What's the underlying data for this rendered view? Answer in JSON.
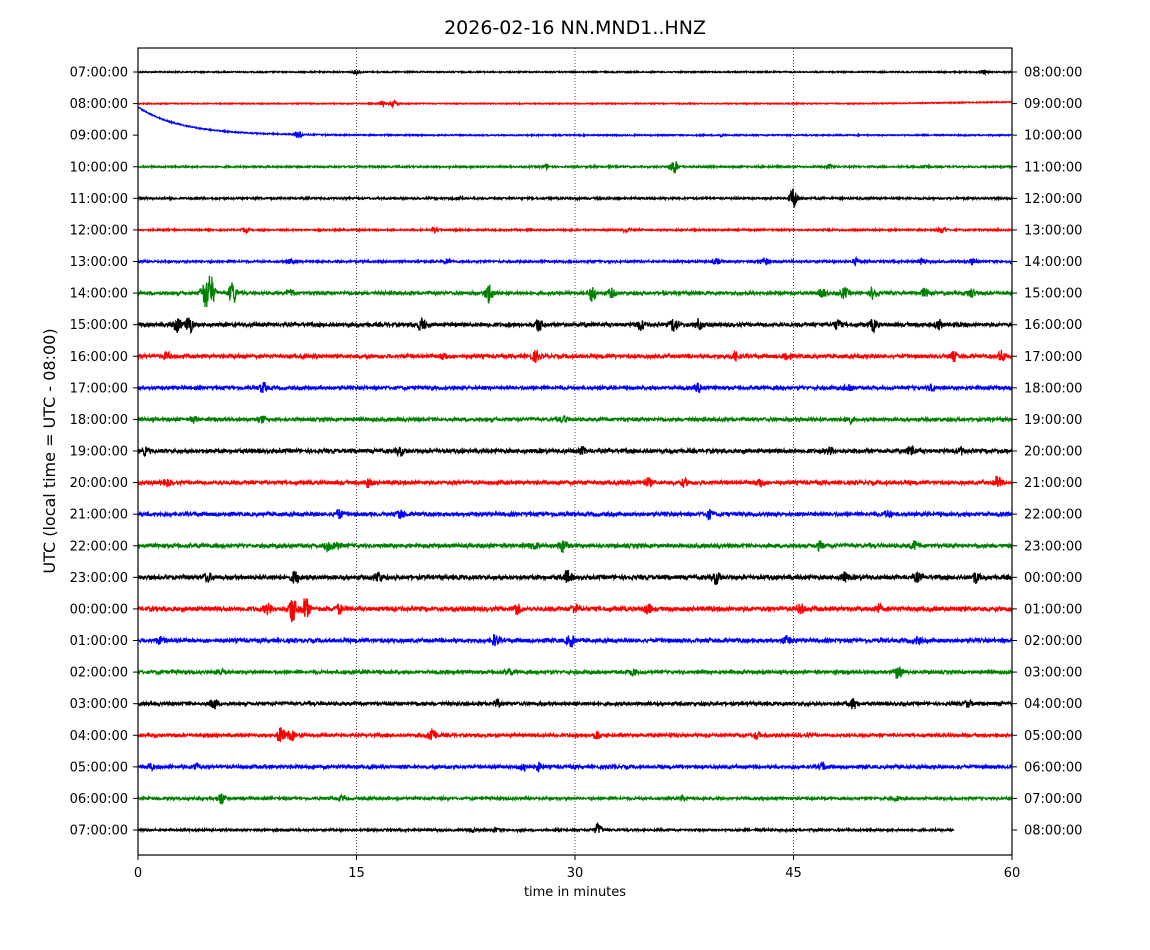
{
  "chart_data": {
    "type": "line",
    "title": "2026-02-16 NN.MND1..HNZ",
    "xlabel": "time in minutes",
    "ylabel": "UTC (local time = UTC - 08:00)",
    "xlim": [
      0,
      60
    ],
    "xticks": [
      0,
      15,
      30,
      45,
      60
    ],
    "grid": "vertical dotted at 15, 30, 45",
    "colors": [
      "#000000",
      "#ff0000",
      "#0000ff",
      "#008000"
    ],
    "rows": [
      {
        "left": "07:00:00",
        "right": "08:00:00",
        "noise": 0.6,
        "events": [
          [
            15,
            2
          ],
          [
            58,
            2
          ]
        ]
      },
      {
        "left": "08:00:00",
        "right": "09:00:00",
        "noise": 0.5,
        "events": [
          [
            16.8,
            2
          ],
          [
            17.6,
            3
          ]
        ],
        "drift_end": -1.5
      },
      {
        "left": "09:00:00",
        "right": "10:00:00",
        "noise": 0.6,
        "events": [
          [
            11,
            4
          ],
          [
            40,
            1
          ]
        ],
        "decay_start": -28
      },
      {
        "left": "10:00:00",
        "right": "11:00:00",
        "noise": 0.8,
        "events": [
          [
            28,
            2
          ],
          [
            36.8,
            7
          ],
          [
            47.5,
            2
          ],
          [
            54,
            2
          ]
        ]
      },
      {
        "left": "11:00:00",
        "right": "12:00:00",
        "noise": 0.9,
        "events": [
          [
            22,
            1.5
          ],
          [
            45,
            11
          ]
        ]
      },
      {
        "left": "12:00:00",
        "right": "13:00:00",
        "noise": 0.8,
        "events": [
          [
            7.4,
            2
          ],
          [
            20.4,
            2
          ],
          [
            33.5,
            2
          ],
          [
            55.2,
            3
          ]
        ]
      },
      {
        "left": "13:00:00",
        "right": "14:00:00",
        "noise": 1.0,
        "events": [
          [
            10.5,
            2
          ],
          [
            21.2,
            2
          ],
          [
            39.7,
            3
          ],
          [
            43,
            4
          ],
          [
            49.3,
            3
          ],
          [
            53.8,
            3
          ],
          [
            57.3,
            3
          ]
        ]
      },
      {
        "left": "14:00:00",
        "right": "15:00:00",
        "noise": 1.5,
        "events": [
          [
            4.6,
            14
          ],
          [
            5,
            16
          ],
          [
            6.5,
            12
          ],
          [
            10.5,
            3
          ],
          [
            24.1,
            10
          ],
          [
            31.2,
            8
          ],
          [
            32.5,
            4
          ],
          [
            47,
            4
          ],
          [
            48.5,
            5
          ],
          [
            50.5,
            6
          ],
          [
            54,
            4
          ],
          [
            57.2,
            4
          ]
        ]
      },
      {
        "left": "15:00:00",
        "right": "16:00:00",
        "noise": 1.8,
        "events": [
          [
            2.7,
            7
          ],
          [
            3.5,
            9
          ],
          [
            19.5,
            6
          ],
          [
            27.5,
            6
          ],
          [
            34.5,
            5
          ],
          [
            36.8,
            7
          ],
          [
            38.5,
            5
          ],
          [
            48,
            4
          ],
          [
            50.5,
            6
          ],
          [
            55,
            4
          ]
        ]
      },
      {
        "left": "16:00:00",
        "right": "17:00:00",
        "noise": 1.8,
        "events": [
          [
            2,
            3
          ],
          [
            21,
            3
          ],
          [
            27.3,
            5
          ],
          [
            41,
            4
          ],
          [
            44.5,
            4
          ],
          [
            56,
            4
          ],
          [
            59.3,
            5
          ]
        ]
      },
      {
        "left": "17:00:00",
        "right": "18:00:00",
        "noise": 1.6,
        "events": [
          [
            8.6,
            5
          ],
          [
            38.5,
            4
          ],
          [
            48.8,
            4
          ],
          [
            54.5,
            3
          ]
        ]
      },
      {
        "left": "18:00:00",
        "right": "19:00:00",
        "noise": 1.6,
        "events": [
          [
            3.8,
            3
          ],
          [
            8.5,
            3
          ],
          [
            29.2,
            3
          ],
          [
            48.8,
            4
          ]
        ]
      },
      {
        "left": "19:00:00",
        "right": "20:00:00",
        "noise": 1.9,
        "events": [
          [
            0.5,
            3
          ],
          [
            18,
            4
          ],
          [
            30.5,
            3
          ],
          [
            47.5,
            3
          ],
          [
            53.1,
            5
          ],
          [
            56.5,
            3
          ]
        ]
      },
      {
        "left": "20:00:00",
        "right": "21:00:00",
        "noise": 1.8,
        "events": [
          [
            2,
            3
          ],
          [
            15.8,
            4
          ],
          [
            35,
            4
          ],
          [
            37.5,
            3
          ],
          [
            42.7,
            4
          ],
          [
            59,
            5
          ]
        ]
      },
      {
        "left": "21:00:00",
        "right": "22:00:00",
        "noise": 1.8,
        "events": [
          [
            13.8,
            4
          ],
          [
            18,
            4
          ],
          [
            39.2,
            4
          ],
          [
            51.5,
            3
          ]
        ]
      },
      {
        "left": "22:00:00",
        "right": "23:00:00",
        "noise": 1.8,
        "events": [
          [
            13,
            4
          ],
          [
            13.6,
            4
          ],
          [
            27.2,
            3
          ],
          [
            29.2,
            6
          ],
          [
            46.8,
            4
          ],
          [
            53.3,
            4
          ]
        ]
      },
      {
        "left": "23:00:00",
        "right": "00:00:00",
        "noise": 2.0,
        "events": [
          [
            4.8,
            4
          ],
          [
            10.8,
            6
          ],
          [
            16.5,
            5
          ],
          [
            29.5,
            6
          ],
          [
            39.7,
            6
          ],
          [
            48.5,
            4
          ],
          [
            53.5,
            4
          ],
          [
            57.5,
            5
          ]
        ]
      },
      {
        "left": "00:00:00",
        "right": "01:00:00",
        "noise": 2.1,
        "events": [
          [
            8.9,
            5
          ],
          [
            10.6,
            13
          ],
          [
            11.5,
            11
          ],
          [
            13.8,
            4
          ],
          [
            26,
            5
          ],
          [
            30,
            4
          ],
          [
            35,
            4
          ],
          [
            45.5,
            4
          ],
          [
            50.8,
            4
          ]
        ]
      },
      {
        "left": "01:00:00",
        "right": "02:00:00",
        "noise": 1.9,
        "events": [
          [
            1.5,
            3
          ],
          [
            24.5,
            5
          ],
          [
            29.7,
            6
          ],
          [
            44.5,
            4
          ],
          [
            53.5,
            3
          ]
        ]
      },
      {
        "left": "02:00:00",
        "right": "03:00:00",
        "noise": 1.5,
        "events": [
          [
            5.8,
            3
          ],
          [
            25.5,
            3
          ],
          [
            34,
            3
          ],
          [
            52.2,
            7
          ]
        ]
      },
      {
        "left": "03:00:00",
        "right": "04:00:00",
        "noise": 1.6,
        "events": [
          [
            5.2,
            5
          ],
          [
            24.7,
            3
          ],
          [
            49.1,
            5
          ],
          [
            57,
            3
          ]
        ]
      },
      {
        "left": "04:00:00",
        "right": "05:00:00",
        "noise": 1.5,
        "events": [
          [
            9.8,
            8
          ],
          [
            10.5,
            5
          ],
          [
            20.2,
            8
          ],
          [
            31.5,
            4
          ],
          [
            42.5,
            3
          ]
        ]
      },
      {
        "left": "05:00:00",
        "right": "06:00:00",
        "noise": 1.6,
        "events": [
          [
            0.8,
            3
          ],
          [
            4,
            3
          ],
          [
            26.5,
            4
          ],
          [
            27.5,
            4
          ],
          [
            47,
            3
          ]
        ]
      },
      {
        "left": "06:00:00",
        "right": "07:00:00",
        "noise": 1.2,
        "events": [
          [
            5.7,
            6
          ],
          [
            14,
            2
          ],
          [
            37.5,
            2
          ],
          [
            52,
            2
          ]
        ]
      },
      {
        "left": "07:00:00",
        "right": "08:00:00",
        "noise": 1.0,
        "events": [
          [
            23,
            2
          ],
          [
            24.5,
            2
          ],
          [
            31.6,
            6
          ]
        ],
        "end_minute": 56
      }
    ]
  }
}
